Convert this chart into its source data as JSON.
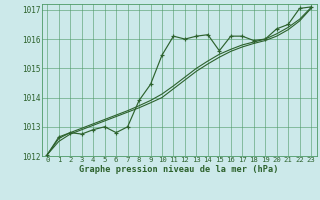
{
  "title": "Graphe pression niveau de la mer (hPa)",
  "hours": [
    0,
    1,
    2,
    3,
    4,
    5,
    6,
    7,
    8,
    9,
    10,
    11,
    12,
    13,
    14,
    15,
    16,
    17,
    18,
    19,
    20,
    21,
    22,
    23
  ],
  "ylim": [
    1012.0,
    1017.2
  ],
  "yticks": [
    1012,
    1013,
    1014,
    1015,
    1016,
    1017
  ],
  "bg_color": "#cce9ea",
  "grid_color": "#4d9966",
  "line_color": "#2d622d",
  "line_main": [
    1012.05,
    1012.65,
    1012.8,
    1012.75,
    1012.9,
    1013.0,
    1012.8,
    1013.0,
    1013.9,
    1014.45,
    1015.45,
    1016.1,
    1016.0,
    1016.1,
    1016.15,
    1015.6,
    1016.1,
    1016.1,
    1015.95,
    1016.0,
    1016.35,
    1016.5,
    1017.05,
    1017.1
  ],
  "line_smooth1": [
    1012.05,
    1012.5,
    1012.75,
    1012.9,
    1013.05,
    1013.2,
    1013.35,
    1013.5,
    1013.65,
    1013.82,
    1014.0,
    1014.3,
    1014.6,
    1014.9,
    1015.15,
    1015.38,
    1015.58,
    1015.73,
    1015.85,
    1015.95,
    1016.1,
    1016.32,
    1016.62,
    1017.05
  ],
  "line_smooth2": [
    1012.05,
    1012.6,
    1012.8,
    1012.95,
    1013.1,
    1013.25,
    1013.4,
    1013.55,
    1013.72,
    1013.9,
    1014.12,
    1014.4,
    1014.7,
    1015.0,
    1015.25,
    1015.48,
    1015.65,
    1015.8,
    1015.9,
    1016.0,
    1016.18,
    1016.4,
    1016.68,
    1017.08
  ],
  "figsize": [
    3.2,
    2.0
  ],
  "dpi": 100
}
